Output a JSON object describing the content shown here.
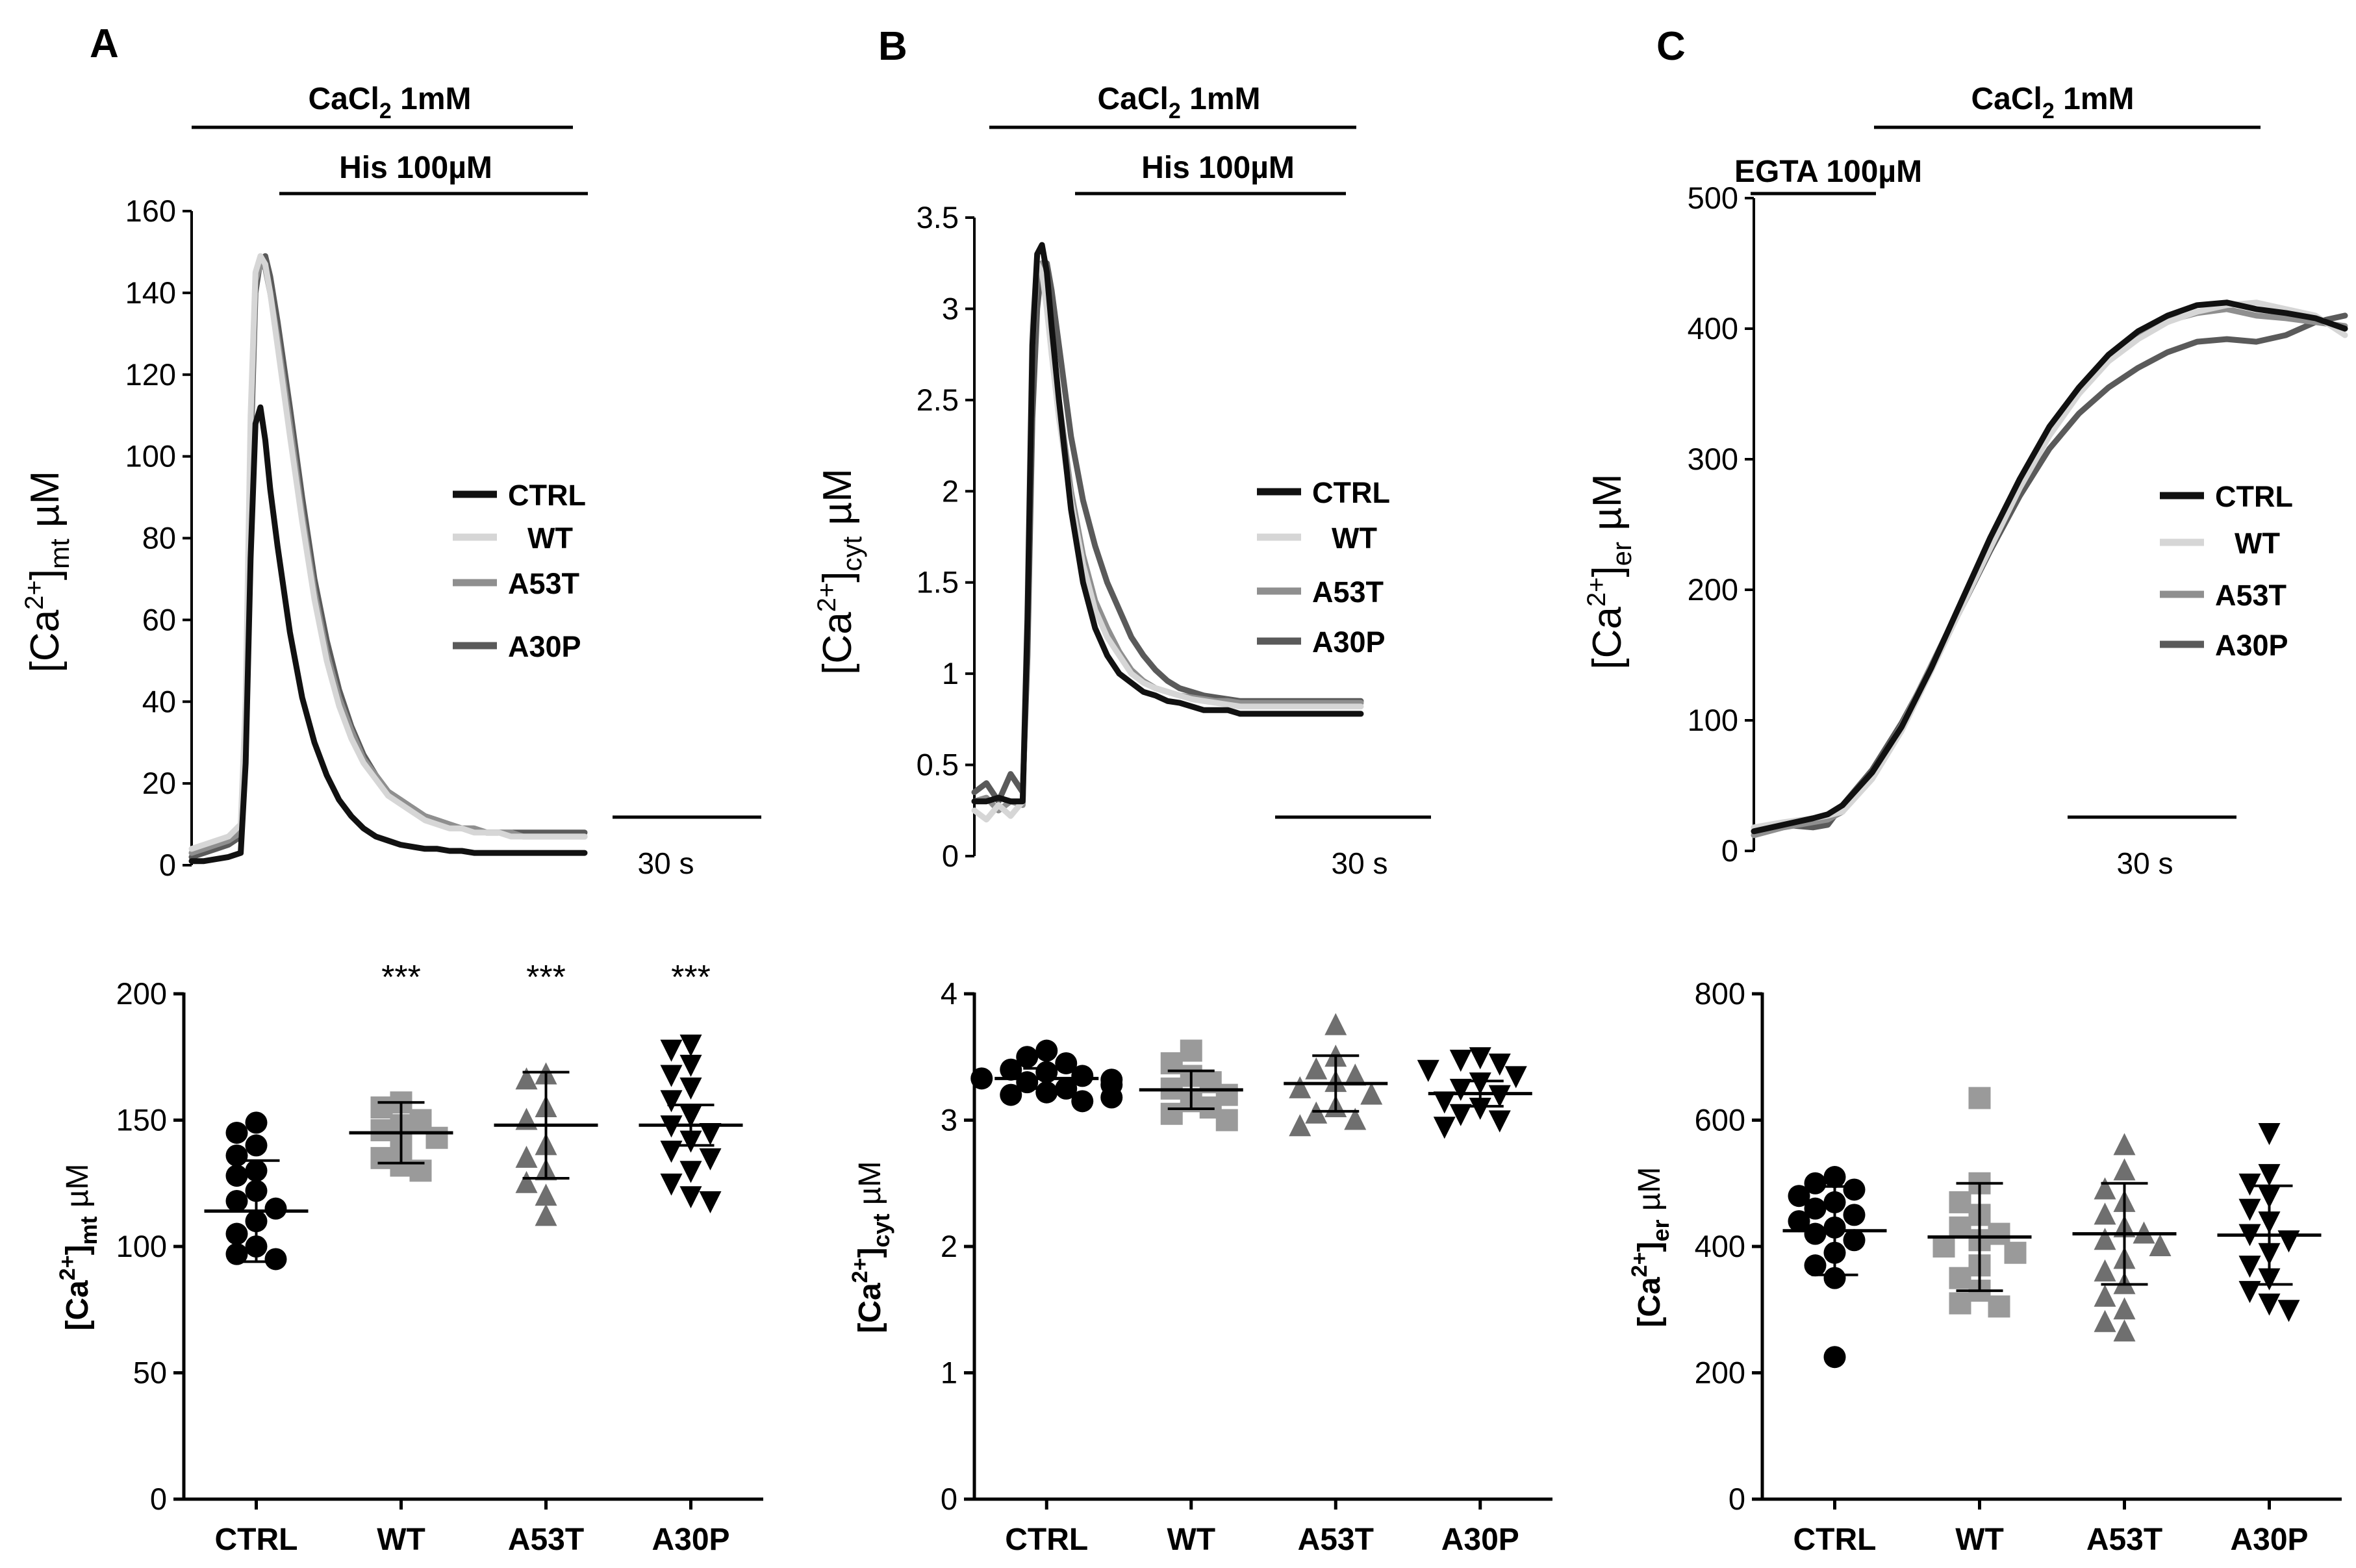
{
  "panels": [
    {
      "letter": "A",
      "bars": {
        "top": "CaCl",
        "top_sub": "2",
        "top_rest": " 1mM",
        "second": "His 100µM"
      },
      "ylabel": {
        "main": "[Ca",
        "sup": "2+",
        "close": "]",
        "sub": "mt",
        "unit": " µM"
      },
      "scale_label": "30 s"
    },
    {
      "letter": "B",
      "bars": {
        "top": "CaCl",
        "top_sub": "2",
        "top_rest": " 1mM",
        "second": "His 100µM"
      },
      "ylabel": {
        "main": "[Ca",
        "sup": "2+",
        "close": "]",
        "sub": "cyt",
        "unit": " µM"
      },
      "scale_label": "30 s"
    },
    {
      "letter": "C",
      "bars": {
        "top": "CaCl",
        "top_sub": "2",
        "top_rest": " 1mM",
        "second": "EGTA 100µM"
      },
      "ylabel": {
        "main": "[Ca",
        "sup": "2+",
        "close": "]",
        "sub": "er",
        "unit": " µM"
      },
      "scale_label": "30 s"
    }
  ],
  "legend": [
    "CTRL",
    "WT",
    "A53T",
    "A30P"
  ],
  "colors": {
    "CTRL": "#111111",
    "WT": "#d6d6d6",
    "A53T": "#8f8f8f",
    "A30P": "#5a5a5a",
    "axis": "#000000"
  },
  "chart_data": [
    {
      "id": "A-trace",
      "type": "line",
      "title": "",
      "xlabel": "",
      "ylabel": "[Ca2+]mt µM",
      "ylim": [
        0,
        160
      ],
      "yticks": [
        0,
        20,
        40,
        60,
        80,
        100,
        120,
        140,
        160
      ],
      "scale_bar": "30 s",
      "x": [
        0,
        5,
        10,
        15,
        20,
        22,
        24,
        26,
        28,
        30,
        32,
        35,
        40,
        45,
        50,
        55,
        60,
        65,
        70,
        75,
        80,
        85,
        90,
        95,
        100,
        105,
        110,
        115,
        120,
        125,
        130,
        135,
        140,
        145,
        150,
        155,
        160
      ],
      "series": [
        {
          "name": "CTRL",
          "values": [
            1,
            1,
            1.5,
            2,
            3,
            25,
            75,
            108,
            112,
            104,
            92,
            78,
            57,
            41,
            30,
            22,
            16,
            12,
            9,
            7,
            6,
            5,
            4.5,
            4,
            4,
            3.5,
            3.5,
            3,
            3,
            3,
            3,
            3,
            3,
            3,
            3,
            3,
            3
          ]
        },
        {
          "name": "WT",
          "values": [
            4,
            5,
            6,
            7,
            10,
            40,
            110,
            145,
            149,
            147,
            140,
            127,
            105,
            84,
            65,
            50,
            39,
            31,
            25,
            21,
            17,
            15,
            13,
            11,
            10,
            9,
            9,
            8,
            8,
            8,
            7,
            7,
            7,
            7,
            7,
            7,
            7
          ]
        },
        {
          "name": "A53T",
          "values": [
            3,
            4,
            5,
            6,
            8,
            35,
            105,
            143,
            147,
            146,
            140,
            129,
            108,
            86,
            67,
            52,
            41,
            33,
            26,
            22,
            18,
            16,
            14,
            12,
            11,
            10,
            9,
            9,
            8,
            8,
            8,
            7,
            7,
            7,
            7,
            7,
            7
          ]
        },
        {
          "name": "A30P",
          "values": [
            2,
            3,
            4,
            5,
            7,
            30,
            100,
            140,
            148,
            149,
            144,
            133,
            112,
            90,
            70,
            55,
            43,
            34,
            27,
            22,
            18,
            16,
            14,
            12,
            11,
            10,
            9,
            9,
            8,
            8,
            8,
            8,
            8,
            8,
            8,
            8,
            8
          ]
        }
      ]
    },
    {
      "id": "B-trace",
      "type": "line",
      "title": "",
      "xlabel": "",
      "ylabel": "[Ca2+]cyt µM",
      "ylim": [
        0,
        3.5
      ],
      "yticks": [
        0,
        0.5,
        1,
        1.5,
        2,
        2.5,
        3,
        3.5
      ],
      "ytick_labels": [
        "0",
        "0.5",
        "1",
        "1.5",
        "2",
        "2.5",
        "3",
        "3.5"
      ],
      "scale_bar": "30 s",
      "x": [
        0,
        5,
        10,
        15,
        20,
        22,
        24,
        26,
        28,
        30,
        32,
        35,
        40,
        45,
        50,
        55,
        60,
        65,
        70,
        75,
        80,
        85,
        90,
        95,
        100,
        105,
        110,
        115,
        120,
        125,
        130,
        135,
        140,
        145,
        150,
        155,
        160
      ],
      "series": [
        {
          "name": "CTRL",
          "values": [
            0.3,
            0.3,
            0.32,
            0.3,
            0.3,
            1.3,
            2.8,
            3.3,
            3.35,
            3.2,
            2.9,
            2.5,
            1.9,
            1.5,
            1.25,
            1.1,
            1.0,
            0.95,
            0.9,
            0.88,
            0.85,
            0.84,
            0.82,
            0.8,
            0.8,
            0.8,
            0.78,
            0.78,
            0.78,
            0.78,
            0.78,
            0.78,
            0.78,
            0.78,
            0.78,
            0.78,
            0.78
          ]
        },
        {
          "name": "WT",
          "values": [
            0.25,
            0.2,
            0.28,
            0.22,
            0.3,
            1.4,
            2.9,
            3.25,
            3.2,
            3.0,
            2.75,
            2.4,
            1.95,
            1.6,
            1.35,
            1.2,
            1.1,
            1.0,
            0.95,
            0.92,
            0.9,
            0.88,
            0.86,
            0.85,
            0.84,
            0.83,
            0.82,
            0.82,
            0.82,
            0.82,
            0.82,
            0.82,
            0.82,
            0.82,
            0.82,
            0.82,
            0.82
          ]
        },
        {
          "name": "A53T",
          "values": [
            0.3,
            0.32,
            0.25,
            0.3,
            0.28,
            1.3,
            2.8,
            3.2,
            3.25,
            3.1,
            2.85,
            2.5,
            2.0,
            1.65,
            1.4,
            1.25,
            1.12,
            1.02,
            0.96,
            0.92,
            0.9,
            0.88,
            0.87,
            0.86,
            0.85,
            0.85,
            0.84,
            0.84,
            0.84,
            0.84,
            0.84,
            0.84,
            0.84,
            0.84,
            0.84,
            0.84,
            0.84
          ]
        },
        {
          "name": "A30P",
          "values": [
            0.35,
            0.4,
            0.3,
            0.45,
            0.35,
            1.1,
            2.4,
            3.0,
            3.25,
            3.25,
            3.1,
            2.8,
            2.3,
            1.95,
            1.7,
            1.5,
            1.35,
            1.2,
            1.1,
            1.02,
            0.96,
            0.92,
            0.9,
            0.88,
            0.87,
            0.86,
            0.85,
            0.85,
            0.85,
            0.85,
            0.85,
            0.85,
            0.85,
            0.85,
            0.85,
            0.85,
            0.85
          ]
        }
      ]
    },
    {
      "id": "C-trace",
      "type": "line",
      "title": "",
      "xlabel": "",
      "ylabel": "[Ca2+]er µM",
      "ylim": [
        0,
        500
      ],
      "yticks": [
        0,
        100,
        200,
        300,
        400,
        500
      ],
      "scale_bar": "30 s",
      "x": [
        0,
        10,
        20,
        25,
        30,
        40,
        50,
        60,
        70,
        80,
        90,
        100,
        110,
        120,
        130,
        140,
        150,
        160,
        170,
        180,
        190,
        200
      ],
      "series": [
        {
          "name": "CTRL",
          "values": [
            15,
            20,
            25,
            28,
            35,
            60,
            95,
            140,
            190,
            240,
            285,
            325,
            355,
            380,
            398,
            410,
            418,
            420,
            415,
            412,
            408,
            400
          ]
        },
        {
          "name": "WT",
          "values": [
            18,
            22,
            25,
            27,
            30,
            55,
            92,
            138,
            185,
            232,
            278,
            318,
            350,
            375,
            392,
            405,
            413,
            418,
            420,
            415,
            410,
            395
          ]
        },
        {
          "name": "A53T",
          "values": [
            12,
            18,
            22,
            24,
            30,
            58,
            96,
            142,
            188,
            236,
            282,
            322,
            353,
            378,
            395,
            406,
            412,
            415,
            410,
            408,
            405,
            402
          ]
        },
        {
          "name": "A30P",
          "values": [
            15,
            20,
            18,
            20,
            35,
            62,
            98,
            140,
            185,
            230,
            272,
            308,
            335,
            355,
            370,
            382,
            390,
            392,
            390,
            395,
            405,
            410
          ]
        }
      ]
    },
    {
      "id": "A-scatter",
      "type": "scatter",
      "title": "",
      "xlabel": "",
      "ylabel": "[Ca2+]mt µM",
      "ylim": [
        0,
        200
      ],
      "yticks": [
        0,
        50,
        100,
        150,
        200
      ],
      "categories": [
        "CTRL",
        "WT",
        "A53T",
        "A30P"
      ],
      "significance": [
        "",
        "***",
        "***",
        "***"
      ],
      "groups": [
        {
          "name": "CTRL",
          "marker": "circle",
          "mean": 114,
          "sd": 20,
          "points": [
            149,
            145,
            140,
            136,
            130,
            128,
            122,
            118,
            115,
            110,
            105,
            100,
            97,
            95
          ]
        },
        {
          "name": "WT",
          "marker": "square",
          "mean": 145,
          "sd": 12,
          "points": [
            157,
            155,
            150,
            148,
            146,
            143,
            140,
            135,
            132,
            130
          ]
        },
        {
          "name": "A53T",
          "marker": "triangle-up",
          "mean": 148,
          "sd": 21,
          "points": [
            168,
            166,
            155,
            150,
            140,
            135,
            130,
            125,
            120,
            112
          ]
        },
        {
          "name": "A30P",
          "marker": "triangle-down",
          "mean": 148,
          "sd": 8,
          "points": [
            180,
            178,
            172,
            168,
            163,
            158,
            152,
            148,
            145,
            142,
            138,
            135,
            130,
            125,
            120,
            118
          ]
        }
      ]
    },
    {
      "id": "B-scatter",
      "type": "scatter",
      "title": "",
      "xlabel": "",
      "ylabel": "[Ca2+]cyt µM",
      "ylim": [
        0,
        4
      ],
      "yticks": [
        0,
        1,
        2,
        3,
        4
      ],
      "categories": [
        "CTRL",
        "WT",
        "A53T",
        "A30P"
      ],
      "groups": [
        {
          "name": "CTRL",
          "marker": "circle",
          "mean": 3.33,
          "sd": 0.08,
          "points": [
            3.55,
            3.5,
            3.45,
            3.4,
            3.38,
            3.35,
            3.33,
            3.32,
            3.3,
            3.28,
            3.25,
            3.22,
            3.2,
            3.18,
            3.15
          ]
        },
        {
          "name": "WT",
          "marker": "square",
          "mean": 3.24,
          "sd": 0.15,
          "points": [
            3.55,
            3.45,
            3.35,
            3.3,
            3.25,
            3.2,
            3.15,
            3.1,
            3.05,
            3.0
          ]
        },
        {
          "name": "A53T",
          "marker": "triangle-up",
          "mean": 3.29,
          "sd": 0.22,
          "points": [
            3.75,
            3.5,
            3.4,
            3.35,
            3.3,
            3.25,
            3.2,
            3.1,
            3.05,
            3.0,
            2.95
          ]
        },
        {
          "name": "A30P",
          "marker": "triangle-down",
          "mean": 3.21,
          "sd": 0.1,
          "points": [
            3.5,
            3.48,
            3.45,
            3.4,
            3.35,
            3.3,
            3.25,
            3.2,
            3.15,
            3.1,
            3.05,
            3.0,
            2.95
          ]
        }
      ]
    },
    {
      "id": "C-scatter",
      "type": "scatter",
      "title": "",
      "xlabel": "",
      "ylabel": "[Ca2+]er µM",
      "ylim": [
        0,
        800
      ],
      "yticks": [
        0,
        200,
        400,
        600,
        800
      ],
      "categories": [
        "CTRL",
        "WT",
        "A53T",
        "A30P"
      ],
      "groups": [
        {
          "name": "CTRL",
          "marker": "circle",
          "mean": 425,
          "sd": 70,
          "points": [
            510,
            500,
            490,
            480,
            470,
            460,
            450,
            440,
            430,
            420,
            410,
            390,
            370,
            350,
            225
          ]
        },
        {
          "name": "WT",
          "marker": "square",
          "mean": 415,
          "sd": 85,
          "points": [
            635,
            500,
            470,
            450,
            430,
            420,
            410,
            400,
            390,
            370,
            350,
            330,
            310,
            305
          ]
        },
        {
          "name": "A53T",
          "marker": "triangle-up",
          "mean": 420,
          "sd": 80,
          "points": [
            560,
            520,
            490,
            470,
            450,
            430,
            420,
            410,
            400,
            380,
            360,
            340,
            320,
            300,
            280,
            265
          ]
        },
        {
          "name": "A30P",
          "marker": "triangle-down",
          "mean": 418,
          "sd": 78,
          "points": [
            580,
            515,
            500,
            480,
            460,
            440,
            420,
            410,
            390,
            370,
            350,
            330,
            310,
            300
          ]
        }
      ]
    }
  ]
}
